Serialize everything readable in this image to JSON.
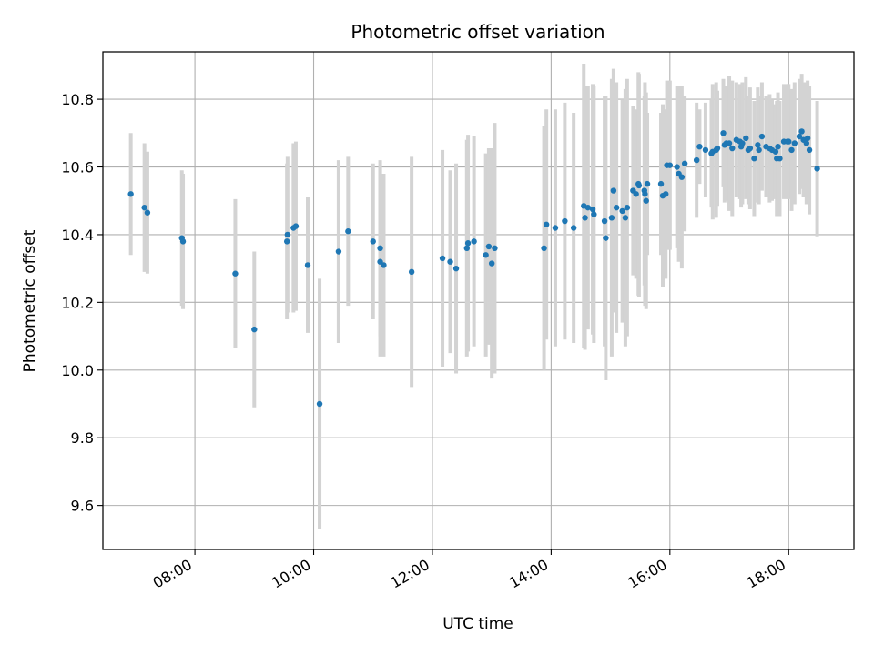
{
  "chart_data": {
    "type": "scatter",
    "title": "Photometric offset variation",
    "xlabel": "UTC time",
    "ylabel": "Photometric offset",
    "x_unit": "hours UTC",
    "xlim": [
      6.45,
      19.1
    ],
    "ylim": [
      9.47,
      10.94
    ],
    "grid": true,
    "legend": false,
    "x_ticks": [
      {
        "value": 8,
        "label": "08:00"
      },
      {
        "value": 10,
        "label": "10:00"
      },
      {
        "value": 12,
        "label": "12:00"
      },
      {
        "value": 14,
        "label": "14:00"
      },
      {
        "value": 16,
        "label": "16:00"
      },
      {
        "value": 18,
        "label": "18:00"
      }
    ],
    "y_ticks": [
      {
        "value": 9.6,
        "label": "9.6"
      },
      {
        "value": 9.8,
        "label": "9.8"
      },
      {
        "value": 10.0,
        "label": "10.0"
      },
      {
        "value": 10.2,
        "label": "10.2"
      },
      {
        "value": 10.4,
        "label": "10.4"
      },
      {
        "value": 10.6,
        "label": "10.6"
      },
      {
        "value": 10.8,
        "label": "10.8"
      }
    ],
    "colors": {
      "point": "#1f77b4",
      "errorbar": "#d3d3d3",
      "grid": "#b0b0b0"
    },
    "series": [
      {
        "x": [
          6.92,
          7.15,
          7.2,
          7.78,
          7.8,
          8.68,
          9.0,
          9.55,
          9.56,
          9.66,
          9.7,
          9.9,
          10.1,
          10.42,
          10.58,
          11.0,
          11.12,
          11.12,
          11.18,
          11.65,
          12.17,
          12.3,
          12.4,
          12.58,
          12.6,
          12.7,
          12.9,
          12.95,
          13.0,
          13.05,
          13.88,
          13.92,
          14.07,
          14.23,
          14.38,
          14.55,
          14.57,
          14.62,
          14.7,
          14.72,
          14.9,
          14.92,
          15.02,
          15.05,
          15.1,
          15.2,
          15.25,
          15.28,
          15.38,
          15.43,
          15.47,
          15.48,
          15.57,
          15.58,
          15.6,
          15.62,
          15.85,
          15.88,
          15.93,
          15.95,
          16.0,
          16.12,
          16.15,
          16.2,
          16.25,
          16.45,
          16.5,
          16.6,
          16.7,
          16.72,
          16.78,
          16.8,
          16.9,
          16.92,
          16.95,
          17.0,
          17.05,
          17.12,
          17.18,
          17.2,
          17.22,
          17.28,
          17.32,
          17.35,
          17.42,
          17.48,
          17.5,
          17.55,
          17.62,
          17.68,
          17.72,
          17.78,
          17.8,
          17.82,
          17.85,
          17.92,
          17.98,
          18.0,
          18.05,
          18.1,
          18.18,
          18.22,
          18.25,
          18.3,
          18.32,
          18.35,
          18.48
        ],
        "y": [
          10.52,
          10.48,
          10.465,
          10.39,
          10.38,
          10.285,
          10.12,
          10.38,
          10.4,
          10.42,
          10.425,
          10.31,
          9.9,
          10.35,
          10.41,
          10.38,
          10.36,
          10.32,
          10.31,
          10.29,
          10.33,
          10.32,
          10.3,
          10.36,
          10.375,
          10.38,
          10.34,
          10.365,
          10.315,
          10.36,
          10.36,
          10.43,
          10.42,
          10.44,
          10.42,
          10.485,
          10.45,
          10.48,
          10.475,
          10.46,
          10.44,
          10.39,
          10.45,
          10.53,
          10.48,
          10.47,
          10.45,
          10.48,
          10.53,
          10.52,
          10.55,
          10.545,
          10.53,
          10.52,
          10.5,
          10.55,
          10.55,
          10.515,
          10.52,
          10.605,
          10.605,
          10.6,
          10.58,
          10.57,
          10.61,
          10.62,
          10.66,
          10.65,
          10.64,
          10.645,
          10.65,
          10.655,
          10.7,
          10.665,
          10.67,
          10.67,
          10.655,
          10.68,
          10.675,
          10.66,
          10.67,
          10.685,
          10.65,
          10.655,
          10.625,
          10.665,
          10.65,
          10.69,
          10.66,
          10.655,
          10.65,
          10.645,
          10.625,
          10.66,
          10.625,
          10.675,
          10.675,
          10.675,
          10.65,
          10.67,
          10.69,
          10.705,
          10.68,
          10.67,
          10.685,
          10.65,
          10.595
        ],
        "err": [
          0.18,
          0.19,
          0.18,
          0.2,
          0.2,
          0.22,
          0.23,
          0.23,
          0.23,
          0.25,
          0.25,
          0.2,
          0.37,
          0.27,
          0.22,
          0.23,
          0.26,
          0.28,
          0.27,
          0.34,
          0.32,
          0.27,
          0.31,
          0.32,
          0.32,
          0.31,
          0.3,
          0.29,
          0.34,
          0.37,
          0.36,
          0.34,
          0.35,
          0.35,
          0.34,
          0.42,
          0.39,
          0.36,
          0.37,
          0.38,
          0.37,
          0.42,
          0.41,
          0.36,
          0.37,
          0.33,
          0.38,
          0.38,
          0.25,
          0.25,
          0.33,
          0.33,
          0.28,
          0.33,
          0.32,
          0.21,
          0.21,
          0.27,
          0.25,
          0.25,
          0.25,
          0.24,
          0.26,
          0.27,
          0.2,
          0.17,
          0.11,
          0.14,
          0.16,
          0.2,
          0.2,
          0.17,
          0.16,
          0.17,
          0.17,
          0.2,
          0.2,
          0.17,
          0.17,
          0.18,
          0.18,
          0.18,
          0.16,
          0.18,
          0.17,
          0.17,
          0.16,
          0.16,
          0.15,
          0.16,
          0.15,
          0.14,
          0.17,
          0.16,
          0.17,
          0.17,
          0.17,
          0.17,
          0.18,
          0.18,
          0.17,
          0.17,
          0.17,
          0.18,
          0.17,
          0.19,
          0.2
        ]
      }
    ]
  }
}
